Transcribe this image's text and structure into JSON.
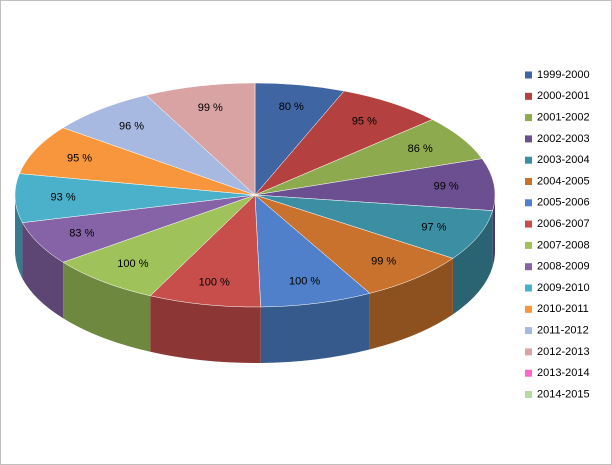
{
  "chart_data": {
    "type": "pie3d",
    "categories": [
      "1999-2000",
      "2000-2001",
      "2001-2002",
      "2002-2003",
      "2003-2004",
      "2004-2005",
      "2005-2006",
      "2006-2007",
      "2007-2008",
      "2008-2009",
      "2009-2010",
      "2010-2011",
      "2011-2012",
      "2012-2013",
      "2013-2014",
      "2014-2015"
    ],
    "values": [
      80,
      95,
      86,
      99,
      97,
      99,
      100,
      100,
      100,
      83,
      93,
      95,
      96,
      99,
      null,
      null
    ],
    "value_labels": [
      "80 %",
      "95 %",
      "86 %",
      "99 %",
      "97 %",
      "99 %",
      "100 %",
      "100 %",
      "100 %",
      "83 %",
      "93 %",
      "95 %",
      "96 %",
      "99 %",
      null,
      null
    ],
    "colors": [
      "#3f65a3",
      "#b4413f",
      "#8dab4e",
      "#6c4f91",
      "#3c8ea3",
      "#c9722d",
      "#4f80c9",
      "#c84e4c",
      "#9fc25b",
      "#8563a6",
      "#4bb0c9",
      "#f7963c",
      "#a7b9e0",
      "#d9a3a3",
      "#ff66cc",
      "#b9d9a4"
    ],
    "legend": "right"
  }
}
